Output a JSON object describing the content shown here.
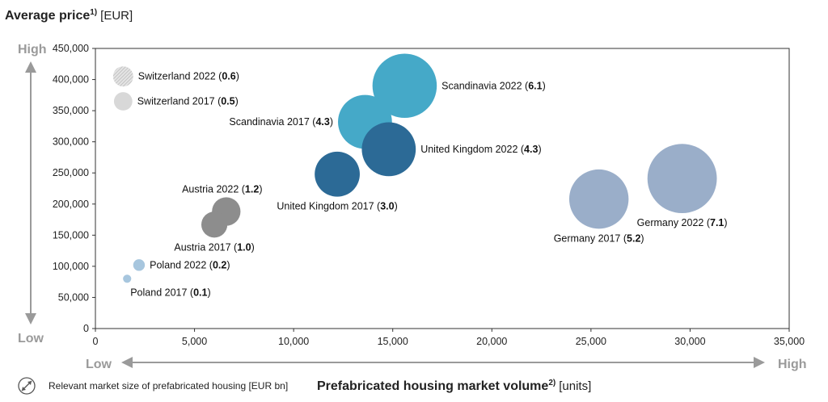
{
  "chart_data": {
    "type": "scatter",
    "subtype": "bubble",
    "ylabel": "Average price",
    "ylabel_sup": "1)",
    "ylabel_unit": "[EUR]",
    "xlabel": "Prefabricated housing market volume",
    "xlabel_sup": "2)",
    "xlabel_unit": "[units]",
    "xlim": [
      0,
      35000
    ],
    "ylim": [
      0,
      450000
    ],
    "x_ticks": [
      0,
      5000,
      10000,
      15000,
      20000,
      25000,
      30000,
      35000
    ],
    "x_tick_labels": [
      "0",
      "5,000",
      "10,000",
      "15,000",
      "20,000",
      "25,000",
      "30,000",
      "35,000"
    ],
    "y_ticks": [
      0,
      50000,
      100000,
      150000,
      200000,
      250000,
      300000,
      350000,
      400000,
      450000
    ],
    "y_tick_labels": [
      "0",
      "50,000",
      "100,000",
      "150,000",
      "200,000",
      "250,000",
      "300,000",
      "350,000",
      "400,000",
      "450,000"
    ],
    "y_axis_low": "Low",
    "y_axis_high": "High",
    "x_axis_low": "Low",
    "x_axis_high": "High",
    "grid": false,
    "size_legend": "Relevant market size of prefabricated housing [EUR bn]",
    "points": [
      {
        "name": "Switzerland 2022",
        "size_value": "0.6",
        "x": 1400,
        "y": 405000,
        "size": 0.6,
        "color": "#d2d2d2",
        "hatched": true,
        "label_side": "right"
      },
      {
        "name": "Switzerland 2017",
        "size_value": "0.5",
        "x": 1400,
        "y": 365000,
        "size": 0.5,
        "color": "#d8d8d8",
        "hatched": false,
        "label_side": "right"
      },
      {
        "name": "Scandinavia 2022",
        "size_value": "6.1",
        "x": 15600,
        "y": 390000,
        "size": 6.1,
        "color": "#45a9c8",
        "hatched": false,
        "label_side": "right"
      },
      {
        "name": "Scandinavia 2017",
        "size_value": "4.3",
        "x": 13600,
        "y": 332000,
        "size": 4.3,
        "color": "#45a9c8",
        "hatched": false,
        "label_side": "left"
      },
      {
        "name": "United Kingdom 2022",
        "size_value": "4.3",
        "x": 14800,
        "y": 288000,
        "size": 4.3,
        "color": "#2c6a96",
        "hatched": false,
        "label_side": "right"
      },
      {
        "name": "United Kingdom 2017",
        "size_value": "3.0",
        "x": 12200,
        "y": 248000,
        "size": 3.0,
        "color": "#2c6a96",
        "hatched": false,
        "label_side": "below"
      },
      {
        "name": "Austria 2022",
        "size_value": "1.2",
        "x": 6600,
        "y": 188000,
        "size": 1.2,
        "color": "#8d8d8d",
        "hatched": false,
        "label_side": "above"
      },
      {
        "name": "Austria 2017",
        "size_value": "1.0",
        "x": 6000,
        "y": 167000,
        "size": 1.0,
        "color": "#8d8d8d",
        "hatched": false,
        "label_side": "below"
      },
      {
        "name": "Poland 2022",
        "size_value": "0.2",
        "x": 2200,
        "y": 102000,
        "size": 0.2,
        "color": "#a7c6de",
        "hatched": false,
        "label_side": "right"
      },
      {
        "name": "Poland 2017",
        "size_value": "0.1",
        "x": 1600,
        "y": 80000,
        "size": 0.1,
        "color": "#a7c6de",
        "hatched": false,
        "label_side": "below-right"
      },
      {
        "name": "Germany 2017",
        "size_value": "5.2",
        "x": 25400,
        "y": 208000,
        "size": 5.2,
        "color": "#9aaec9",
        "hatched": false,
        "label_side": "below"
      },
      {
        "name": "Germany 2022",
        "size_value": "7.1",
        "x": 29600,
        "y": 241000,
        "size": 7.1,
        "color": "#9aaec9",
        "hatched": false,
        "label_side": "below"
      }
    ]
  }
}
